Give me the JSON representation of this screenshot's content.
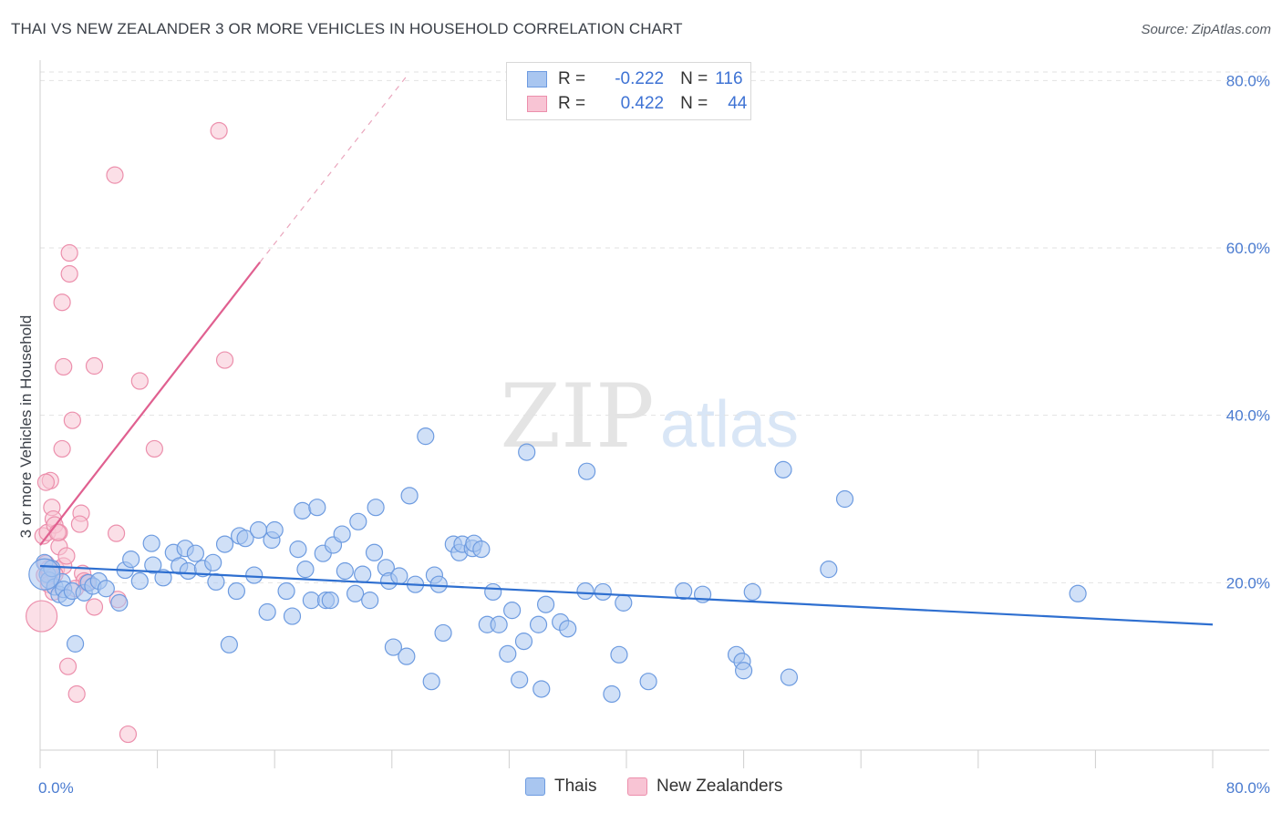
{
  "title": "THAI VS NEW ZEALANDER 3 OR MORE VEHICLES IN HOUSEHOLD CORRELATION CHART",
  "source": "Source: ZipAtlas.com",
  "watermark": {
    "zip": "ZIP",
    "atlas": "atlas"
  },
  "legend": {
    "rows": [
      {
        "r_label": "R =",
        "r_value": "-0.222",
        "n_label": "N =",
        "n_value": "116",
        "fill": "#a9c6f0",
        "stroke": "#6d9be0"
      },
      {
        "r_label": "R =",
        "r_value": "0.422",
        "n_label": "N =",
        "n_value": "44",
        "fill": "#f8c4d4",
        "stroke": "#ec8fac"
      }
    ]
  },
  "bottom_legend": [
    {
      "label": "Thais",
      "fill": "#a9c6f0",
      "stroke": "#6d9be0"
    },
    {
      "label": "New Zealanders",
      "fill": "#f8c4d4",
      "stroke": "#ec8fac"
    }
  ],
  "chart_data": {
    "type": "scatter",
    "title": "THAI VS NEW ZEALANDER 3 OR MORE VEHICLES IN HOUSEHOLD CORRELATION CHART",
    "xlabel": "",
    "ylabel": "3 or more Vehicles in Household",
    "xlim": [
      0,
      80
    ],
    "ylim": [
      0,
      82
    ],
    "x_tick_labels": [
      "0.0%",
      "80.0%"
    ],
    "y_ticks": [
      20,
      40,
      60,
      80
    ],
    "y_tick_labels": [
      "20.0%",
      "40.0%",
      "60.0%",
      "80.0%"
    ],
    "grid": true,
    "legend_position": "top-center",
    "series": [
      {
        "name": "Thais",
        "color": "#6d9be0",
        "fill": "#a9c6f0",
        "trend_color": "#2e6fd0",
        "r": -0.222,
        "n": 116,
        "trend": {
          "x": [
            0,
            80
          ],
          "y": [
            22.0,
            15.0
          ]
        },
        "points": [
          [
            0.3,
            22.4
          ],
          [
            0.5,
            21.0
          ],
          [
            0.6,
            20.3
          ],
          [
            0.8,
            21.7
          ],
          [
            1.0,
            19.5
          ],
          [
            1.3,
            18.6
          ],
          [
            1.5,
            20.1
          ],
          [
            1.6,
            19.2
          ],
          [
            1.8,
            18.2
          ],
          [
            2.2,
            19.0
          ],
          [
            2.4,
            12.7
          ],
          [
            3.0,
            18.8
          ],
          [
            3.3,
            20.0
          ],
          [
            3.6,
            19.6
          ],
          [
            4.0,
            20.2
          ],
          [
            4.5,
            19.3
          ],
          [
            5.4,
            17.6
          ],
          [
            5.8,
            21.5
          ],
          [
            6.2,
            22.8
          ],
          [
            6.8,
            20.2
          ],
          [
            7.6,
            24.7
          ],
          [
            7.7,
            22.1
          ],
          [
            8.4,
            20.6
          ],
          [
            9.1,
            23.6
          ],
          [
            9.5,
            22.0
          ],
          [
            9.9,
            24.1
          ],
          [
            10.1,
            21.4
          ],
          [
            10.6,
            23.5
          ],
          [
            11.1,
            21.7
          ],
          [
            11.8,
            22.4
          ],
          [
            12.0,
            20.1
          ],
          [
            12.6,
            24.6
          ],
          [
            12.9,
            12.6
          ],
          [
            13.4,
            19.0
          ],
          [
            13.6,
            25.6
          ],
          [
            14.0,
            25.3
          ],
          [
            14.6,
            20.9
          ],
          [
            14.9,
            26.3
          ],
          [
            15.5,
            16.5
          ],
          [
            15.8,
            25.1
          ],
          [
            16.0,
            26.3
          ],
          [
            16.8,
            19.0
          ],
          [
            17.2,
            16.0
          ],
          [
            17.6,
            24.0
          ],
          [
            17.9,
            28.6
          ],
          [
            18.1,
            21.6
          ],
          [
            18.5,
            17.9
          ],
          [
            18.9,
            29.0
          ],
          [
            19.3,
            23.5
          ],
          [
            19.5,
            17.9
          ],
          [
            19.8,
            17.9
          ],
          [
            20.0,
            24.5
          ],
          [
            20.6,
            25.8
          ],
          [
            20.8,
            21.4
          ],
          [
            21.5,
            18.7
          ],
          [
            21.7,
            27.3
          ],
          [
            22.0,
            21.0
          ],
          [
            22.5,
            17.9
          ],
          [
            22.8,
            23.6
          ],
          [
            22.9,
            29.0
          ],
          [
            23.6,
            21.8
          ],
          [
            23.8,
            20.2
          ],
          [
            24.1,
            12.3
          ],
          [
            24.5,
            20.8
          ],
          [
            25.0,
            11.2
          ],
          [
            25.2,
            30.4
          ],
          [
            25.6,
            19.8
          ],
          [
            26.3,
            37.5
          ],
          [
            26.7,
            8.2
          ],
          [
            26.9,
            20.9
          ],
          [
            27.2,
            19.8
          ],
          [
            27.5,
            14.0
          ],
          [
            28.2,
            24.6
          ],
          [
            28.6,
            23.6
          ],
          [
            28.8,
            24.6
          ],
          [
            29.5,
            24.1
          ],
          [
            29.6,
            24.7
          ],
          [
            30.1,
            24.0
          ],
          [
            30.5,
            15.0
          ],
          [
            30.9,
            18.9
          ],
          [
            31.3,
            15.0
          ],
          [
            31.9,
            11.5
          ],
          [
            32.2,
            16.7
          ],
          [
            32.7,
            8.4
          ],
          [
            33.0,
            13.0
          ],
          [
            33.2,
            35.6
          ],
          [
            34.0,
            15.0
          ],
          [
            34.2,
            7.3
          ],
          [
            34.5,
            17.4
          ],
          [
            35.5,
            15.3
          ],
          [
            36.0,
            14.5
          ],
          [
            37.2,
            19.0
          ],
          [
            37.3,
            33.3
          ],
          [
            38.4,
            18.9
          ],
          [
            39.0,
            6.7
          ],
          [
            39.5,
            11.4
          ],
          [
            39.8,
            17.6
          ],
          [
            41.5,
            8.2
          ],
          [
            43.9,
            19.0
          ],
          [
            45.2,
            18.6
          ],
          [
            47.5,
            11.4
          ],
          [
            47.9,
            10.6
          ],
          [
            48.0,
            9.5
          ],
          [
            48.6,
            18.9
          ],
          [
            50.7,
            33.5
          ],
          [
            51.1,
            8.7
          ],
          [
            53.8,
            21.6
          ],
          [
            54.9,
            30.0
          ],
          [
            70.8,
            18.7
          ]
        ],
        "large_point": [
          0.3,
          21.0
        ]
      },
      {
        "name": "New Zealanders",
        "color": "#ec8fac",
        "fill": "#f8c4d4",
        "trend_color": "#e06090",
        "r": 0.422,
        "n": 44,
        "trend": {
          "x": [
            0,
            15
          ],
          "y": [
            24.5,
            58.3
          ],
          "dashed_to": [
            25,
            80.5
          ]
        },
        "points": [
          [
            0.2,
            25.6
          ],
          [
            0.3,
            20.9
          ],
          [
            0.4,
            22.3
          ],
          [
            0.5,
            26.0
          ],
          [
            0.6,
            21.3
          ],
          [
            0.6,
            19.8
          ],
          [
            0.7,
            32.2
          ],
          [
            0.8,
            29.0
          ],
          [
            0.9,
            27.6
          ],
          [
            1.0,
            26.9
          ],
          [
            1.1,
            21.6
          ],
          [
            1.3,
            26.0
          ],
          [
            1.3,
            24.3
          ],
          [
            1.5,
            53.5
          ],
          [
            1.6,
            45.8
          ],
          [
            1.6,
            22.0
          ],
          [
            1.8,
            23.2
          ],
          [
            1.9,
            10.0
          ],
          [
            2.0,
            59.4
          ],
          [
            2.0,
            56.9
          ],
          [
            2.2,
            39.4
          ],
          [
            2.5,
            6.7
          ],
          [
            2.8,
            28.3
          ],
          [
            2.9,
            21.1
          ],
          [
            3.0,
            20.2
          ],
          [
            3.7,
            45.9
          ],
          [
            3.7,
            17.1
          ],
          [
            5.1,
            68.7
          ],
          [
            5.2,
            25.9
          ],
          [
            6.0,
            1.9
          ],
          [
            6.8,
            44.1
          ],
          [
            7.8,
            36.0
          ],
          [
            12.2,
            74.0
          ],
          [
            12.6,
            46.6
          ],
          [
            1.5,
            36.0
          ],
          [
            0.9,
            18.9
          ],
          [
            2.4,
            19.3
          ],
          [
            5.3,
            18.0
          ],
          [
            3.2,
            20.0
          ],
          [
            1.2,
            26.0
          ],
          [
            0.4,
            32.0
          ],
          [
            0.6,
            21.7
          ],
          [
            2.7,
            27.0
          ],
          [
            1.0,
            21.0
          ]
        ],
        "large_point": [
          0.1,
          16.0
        ]
      }
    ]
  }
}
